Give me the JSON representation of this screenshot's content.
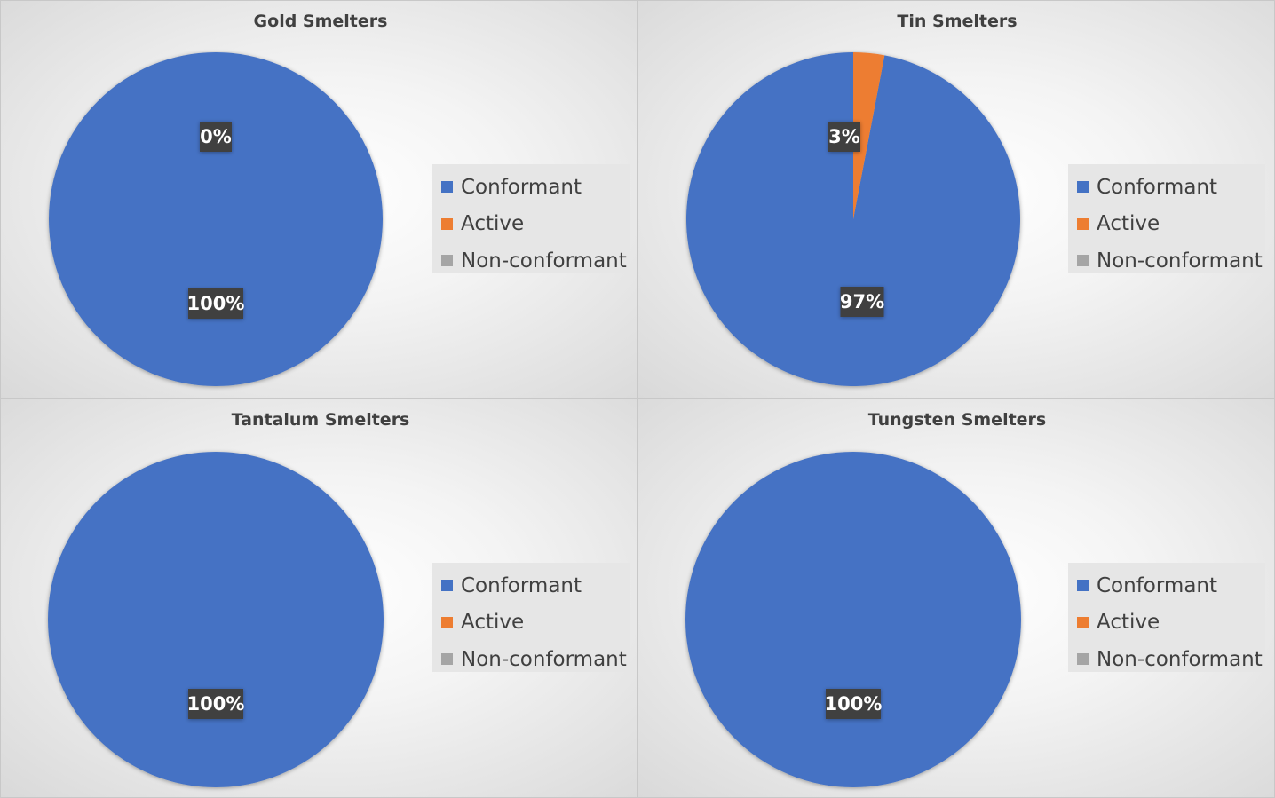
{
  "colors": {
    "conformant": "#4472c4",
    "active": "#ed7d31",
    "non_conformant": "#a5a5a5"
  },
  "chart_data": [
    {
      "type": "pie",
      "title": "Gold Smelters",
      "categories": [
        "Conformant",
        "Active",
        "Non-conformant"
      ],
      "values": [
        100,
        0,
        0
      ],
      "data_labels": [
        "100%",
        "0%",
        ""
      ],
      "legend_position": "right",
      "legend": [
        "Conformant",
        "Active",
        "Non-conformant"
      ]
    },
    {
      "type": "pie",
      "title": "Tin Smelters",
      "categories": [
        "Conformant",
        "Active",
        "Non-conformant"
      ],
      "values": [
        97,
        3,
        0
      ],
      "data_labels": [
        "97%",
        "3%",
        ""
      ],
      "legend_position": "right",
      "legend": [
        "Conformant",
        "Active",
        "Non-conformant"
      ]
    },
    {
      "type": "pie",
      "title": "Tantalum Smelters",
      "categories": [
        "Conformant",
        "Active",
        "Non-conformant"
      ],
      "values": [
        100,
        0,
        0
      ],
      "data_labels": [
        "100%",
        "",
        ""
      ],
      "legend_position": "right",
      "legend": [
        "Conformant",
        "Active",
        "Non-conformant"
      ]
    },
    {
      "type": "pie",
      "title": "Tungsten Smelters",
      "categories": [
        "Conformant",
        "Active",
        "Non-conformant"
      ],
      "values": [
        100,
        0,
        0
      ],
      "data_labels": [
        "100%",
        "",
        ""
      ],
      "legend_position": "right",
      "legend": [
        "Conformant",
        "Active",
        "Non-conformant"
      ]
    }
  ]
}
